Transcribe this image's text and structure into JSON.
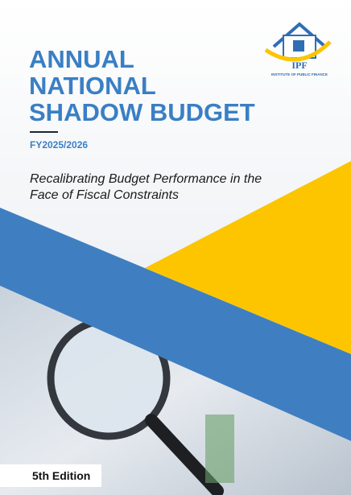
{
  "logo": {
    "acronym": "IPF",
    "name": "INSTITUTE OF PUBLIC FINANCE"
  },
  "title": {
    "lines": [
      "ANNUAL",
      "NATIONAL",
      "SHADOW BUDGET"
    ]
  },
  "fiscal_year": "FY2025/2026",
  "subtitle": {
    "lines": [
      "Recalibrating Budget Performance in the",
      "Face of Fiscal Constraints"
    ]
  },
  "edition": "5th Edition"
}
